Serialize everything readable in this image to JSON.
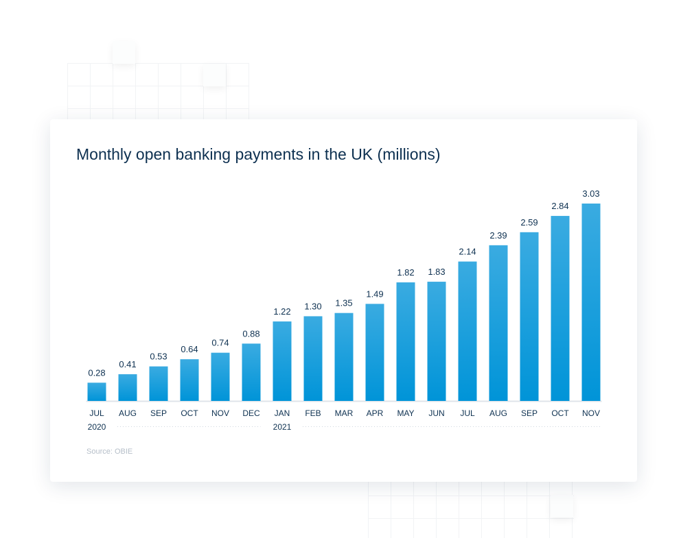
{
  "chart_data": {
    "type": "bar",
    "title": "Monthly open banking payments in the UK (millions)",
    "categories": [
      "JUL",
      "AUG",
      "SEP",
      "OCT",
      "NOV",
      "DEC",
      "JAN",
      "FEB",
      "MAR",
      "APR",
      "MAY",
      "JUN",
      "JUL",
      "AUG",
      "SEP",
      "OCT",
      "NOV"
    ],
    "values": [
      0.28,
      0.41,
      0.53,
      0.64,
      0.74,
      0.88,
      1.22,
      1.3,
      1.35,
      1.49,
      1.82,
      1.83,
      2.14,
      2.39,
      2.59,
      2.84,
      3.03
    ],
    "value_labels": [
      "0.28",
      "0.41",
      "0.53",
      "0.64",
      "0.74",
      "0.88",
      "1.22",
      "1.30",
      "1.35",
      "1.49",
      "1.82",
      "1.83",
      "2.14",
      "2.39",
      "2.59",
      "2.84",
      "3.03"
    ],
    "years": [
      {
        "label": "2020",
        "start_index": 0,
        "end_index": 5
      },
      {
        "label": "2021",
        "start_index": 6,
        "end_index": 16
      }
    ],
    "xlabel": "",
    "ylabel": "",
    "ylim": [
      0,
      3.03
    ],
    "grid": false,
    "source": "Source: OBIE",
    "colors": {
      "bar_top": "#3aabe1",
      "bar_bottom": "#0094d8",
      "text": "#0d3050"
    }
  }
}
